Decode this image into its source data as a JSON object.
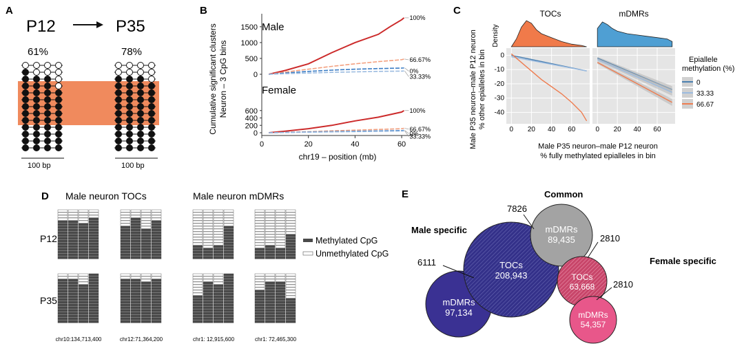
{
  "panels": {
    "A": {
      "letter": "A",
      "from_label": "P12",
      "to_label": "P35",
      "from_pct": "61%",
      "to_pct": "78%",
      "scale_left": "100 bp",
      "scale_right": "100 bp",
      "colors": {
        "highlight": "#f08a5d",
        "methylated": "#111111",
        "unmethylated": "#ffffff"
      },
      "p12_pattern": [
        [
          0,
          0,
          0,
          0
        ],
        [
          1,
          0,
          0,
          0
        ],
        [
          1,
          1,
          1,
          0
        ],
        [
          1,
          1,
          1,
          0
        ],
        [
          1,
          1,
          1,
          1
        ],
        [
          1,
          1,
          1,
          1
        ],
        [
          1,
          1,
          1,
          1
        ],
        [
          1,
          1,
          1,
          1
        ],
        [
          1,
          1,
          1,
          1
        ],
        [
          1,
          1,
          1,
          1
        ],
        [
          1,
          1,
          1,
          1
        ],
        [
          1,
          1,
          1,
          1
        ],
        [
          1,
          1,
          1,
          1
        ]
      ],
      "p35_pattern": [
        [
          0,
          0,
          0,
          0
        ],
        [
          0,
          0,
          0,
          0
        ],
        [
          1,
          1,
          1,
          0
        ],
        [
          1,
          1,
          1,
          1
        ],
        [
          1,
          1,
          1,
          1
        ],
        [
          1,
          1,
          1,
          1
        ],
        [
          1,
          1,
          1,
          1
        ],
        [
          1,
          1,
          1,
          1
        ],
        [
          1,
          1,
          1,
          1
        ],
        [
          1,
          1,
          1,
          1
        ],
        [
          1,
          1,
          1,
          1
        ],
        [
          1,
          1,
          1,
          1
        ],
        [
          1,
          1,
          1,
          1
        ]
      ]
    },
    "B": {
      "letter": "B",
      "ylabel_line1": "Cumulative significant clusters",
      "ylabel_line2": "Neuron – 3 CpG bins",
      "xlabel": "chr19 – position (mb)",
      "male_title": "Male",
      "female_title": "Female"
    },
    "C": {
      "letter": "C",
      "density_label": "Density",
      "legend_title_1": "Epiallele",
      "legend_title_2": "methylation (%)",
      "ylabel_line1": "Male P35 neuron–male P12 neuron",
      "ylabel_line2": "% other epialleles in bin",
      "xlabel_line1": "Male P35 neuron–male P12 neuron",
      "xlabel_line2": "% fully methylated epialleles in bin"
    },
    "D": {
      "letter": "D",
      "tocs_title": "Male neuron TOCs",
      "mdmrs_title": "Male neuron mDMRs",
      "p12_label": "P12",
      "p35_label": "P35",
      "legend_methylated": "Methylated CpG",
      "legend_unmethylated": "Unmethylated CpG",
      "colors": {
        "methylated": "#4a4a4a",
        "unmethylated": "#ffffff"
      },
      "loci": [
        "chr10:134,713,400",
        "chr12:71,364,200",
        "chr1: 12,915,600",
        "chr1: 72,465,300"
      ],
      "p12_unmeth_rows": [
        [
          4,
          3,
          5,
          2
        ],
        [
          5,
          3,
          6,
          4
        ],
        [
          13,
          13,
          13,
          5
        ],
        [
          13,
          13,
          13,
          9
        ]
      ],
      "p35_unmeth_rows": [
        [
          1,
          2,
          3,
          0
        ],
        [
          2,
          1,
          3,
          1
        ],
        [
          7,
          3,
          3,
          0
        ],
        [
          6,
          2,
          3,
          8
        ]
      ]
    },
    "E": {
      "letter": "E",
      "common_label": "Common",
      "male_specific_label": "Male specific",
      "female_specific_label": "Female specific",
      "circles": {
        "male_tocs": {
          "name": "TOCs",
          "value": "208,943",
          "color": "#34318a"
        },
        "male_mdmrs": {
          "name": "mDMRs",
          "value": "97,134",
          "color": "#3a3193"
        },
        "common_mdmrs": {
          "name": "mDMRs",
          "value": "89,435",
          "color": "#a3a3a3"
        },
        "female_tocs": {
          "name": "TOCs",
          "value": "63,668",
          "color": "#c8466a"
        },
        "female_mdmrs": {
          "name": "mDMRs",
          "value": "54,357",
          "color": "#e8578a"
        }
      },
      "overlaps": {
        "male_tocs_common": "7826",
        "male_tocs_mdmrs": "6111",
        "common_female_tocs": "2810",
        "female_tocs_mdmrs": "2810"
      }
    }
  },
  "chart_data": [
    {
      "type": "line",
      "title": "Male",
      "xlabel": "chr19 – position (mb)",
      "ylabel": "Cumulative significant clusters",
      "xlim": [
        0,
        65
      ],
      "ylim": [
        0,
        1800
      ],
      "yticks": [
        0,
        500,
        1000,
        1500
      ],
      "xticks": [
        0,
        20,
        40,
        60
      ],
      "series": [
        {
          "name": "100%",
          "color": "#cc2a2a",
          "x": [
            3,
            10,
            20,
            30,
            40,
            50,
            55,
            60,
            61
          ],
          "y": [
            0,
            120,
            330,
            680,
            1000,
            1260,
            1500,
            1720,
            1780
          ]
        },
        {
          "name": "66.67%",
          "color": "#f3a07f",
          "x": [
            3,
            10,
            20,
            30,
            40,
            50,
            60,
            61
          ],
          "y": [
            0,
            70,
            160,
            250,
            330,
            400,
            460,
            480
          ]
        },
        {
          "name": "0%",
          "color": "#3a7cc4",
          "x": [
            3,
            10,
            20,
            30,
            40,
            50,
            60,
            61
          ],
          "y": [
            0,
            40,
            90,
            130,
            160,
            180,
            195,
            200
          ]
        },
        {
          "name": "33.33%",
          "color": "#9bbbe0",
          "x": [
            3,
            10,
            20,
            30,
            40,
            50,
            60,
            61
          ],
          "y": [
            0,
            20,
            40,
            60,
            75,
            90,
            100,
            105
          ]
        }
      ]
    },
    {
      "type": "line",
      "title": "Female",
      "xlabel": "chr19 – position (mb)",
      "ylabel": "Cumulative significant clusters",
      "xlim": [
        0,
        65
      ],
      "ylim": [
        0,
        800
      ],
      "yticks": [
        0,
        200,
        400,
        600
      ],
      "xticks": [
        0,
        20,
        40,
        60
      ],
      "series": [
        {
          "name": "100%",
          "color": "#cc2a2a",
          "x": [
            3,
            10,
            20,
            30,
            40,
            50,
            60,
            61
          ],
          "y": [
            0,
            40,
            110,
            200,
            320,
            420,
            560,
            600
          ]
        },
        {
          "name": "66.67%",
          "color": "#f3a07f",
          "x": [
            3,
            10,
            20,
            30,
            40,
            50,
            60,
            61
          ],
          "y": [
            0,
            10,
            30,
            50,
            70,
            90,
            110,
            120
          ]
        },
        {
          "name": "0%",
          "color": "#3a7cc4",
          "x": [
            3,
            10,
            20,
            30,
            40,
            50,
            60,
            61
          ],
          "y": [
            0,
            8,
            20,
            30,
            40,
            50,
            60,
            65
          ]
        },
        {
          "name": "33.33%",
          "color": "#9bbbe0",
          "x": [
            3,
            10,
            20,
            30,
            40,
            50,
            60,
            61
          ],
          "y": [
            0,
            6,
            15,
            22,
            30,
            38,
            45,
            50
          ]
        }
      ]
    },
    {
      "type": "line",
      "title": "TOCs",
      "xlim": [
        -5,
        78
      ],
      "ylim": [
        -48,
        5
      ],
      "xticks": [
        0,
        20,
        40,
        60
      ],
      "yticks": [
        0,
        -10,
        -20,
        -30,
        -40
      ],
      "grid": true,
      "density": {
        "color": "#f07a4a",
        "x": [
          0,
          5,
          10,
          15,
          20,
          25,
          30,
          40,
          50,
          60,
          70,
          75
        ],
        "y": [
          0,
          0.3,
          0.75,
          1.0,
          0.9,
          0.65,
          0.5,
          0.35,
          0.2,
          0.1,
          0.05,
          0
        ]
      },
      "series": [
        {
          "name": "0",
          "color": "#4a7fb0",
          "x": [
            0,
            75
          ],
          "y": [
            0,
            -11
          ]
        },
        {
          "name": "33.33",
          "color": "#9bbbe0",
          "x": [
            0,
            75
          ],
          "y": [
            -1,
            -11
          ]
        },
        {
          "name": "66.67",
          "color": "#ee7c4f",
          "x": [
            0,
            10,
            20,
            30,
            40,
            50,
            60,
            70,
            75
          ],
          "y": [
            1,
            -5,
            -11,
            -17,
            -22,
            -27,
            -33,
            -40,
            -46
          ]
        }
      ]
    },
    {
      "type": "line",
      "title": "mDMRs",
      "xlim": [
        -5,
        78
      ],
      "ylim": [
        -48,
        5
      ],
      "xticks": [
        0,
        20,
        40,
        60
      ],
      "grid": true,
      "density": {
        "color": "#4f9fd3",
        "x": [
          0,
          5,
          10,
          15,
          20,
          30,
          40,
          50,
          60,
          70,
          75
        ],
        "y": [
          0.7,
          0.95,
          0.85,
          0.7,
          0.6,
          0.5,
          0.45,
          0.4,
          0.35,
          0.3,
          0.2
        ]
      },
      "series": [
        {
          "name": "0",
          "color": "#4a7fb0",
          "x": [
            0,
            75
          ],
          "y": [
            -2,
            -24
          ]
        },
        {
          "name": "33.33",
          "color": "#9bbbe0",
          "x": [
            0,
            75
          ],
          "y": [
            -3,
            -26
          ]
        },
        {
          "name": "66.67",
          "color": "#ee7c4f",
          "x": [
            0,
            75
          ],
          "y": [
            -5,
            -33
          ]
        }
      ]
    }
  ]
}
